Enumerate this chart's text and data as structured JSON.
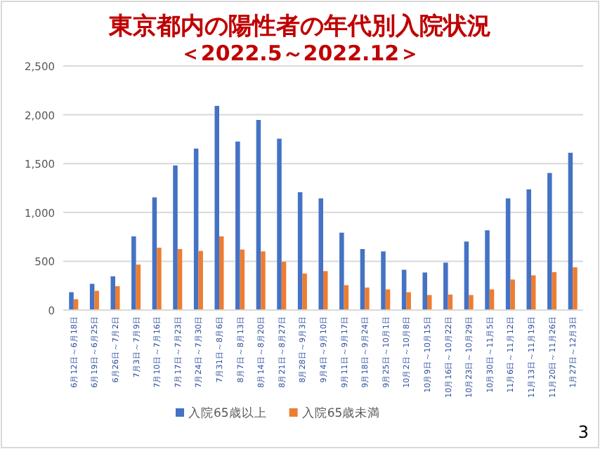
{
  "chart_data": {
    "type": "bar",
    "title": "東京都内の陽性者の年代別入院状況",
    "subtitle": "＜2022.5～2022.12＞",
    "categories": [
      "6月12日～6月18日",
      "6月19日～6月25日",
      "6月26日～7月2日",
      "7月3日～7月9日",
      "7月10日～7月16日",
      "7月17日～7月23日",
      "7月24日～7月30日",
      "7月31日～8月6日",
      "8月7日～8月13日",
      "8月14日～8月20日",
      "8月21日～8月27日",
      "8月28日～9月3日",
      "9月4日～9月10日",
      "9月11日～9月17日",
      "9月18日～9月24日",
      "9月25日～10月1日",
      "10月2日～10月8日",
      "10月9日～10月15日",
      "10月16日～10月22日",
      "10月23日～10月29日",
      "10月30日～11月5日",
      "11月6日～11月12日",
      "11月13日～11月19日",
      "11月20日～11月26日",
      "1月27日～12月3日"
    ],
    "series": [
      {
        "name": "入院65歳以上",
        "color": "#4472c4",
        "values": [
          183,
          269,
          346,
          755,
          1154,
          1481,
          1654,
          2091,
          1726,
          1947,
          1755,
          1207,
          1144,
          793,
          625,
          601,
          413,
          385,
          486,
          702,
          817,
          1144,
          1236,
          1404,
          1611
        ]
      },
      {
        "name": "入院65歳未満",
        "color": "#ed7d31",
        "values": [
          111,
          197,
          245,
          466,
          639,
          625,
          606,
          755,
          620,
          601,
          495,
          375,
          399,
          255,
          231,
          212,
          183,
          154,
          159,
          154,
          212,
          313,
          356,
          389,
          438
        ]
      }
    ],
    "ylim": [
      0,
      2500
    ],
    "yticks": [
      {
        "value": 0,
        "label": "0"
      },
      {
        "value": 500,
        "label": "500"
      },
      {
        "value": 1000,
        "label": "1,000"
      },
      {
        "value": 1500,
        "label": "1,500"
      },
      {
        "value": 2000,
        "label": "2,000"
      },
      {
        "value": 2500,
        "label": "2,500"
      }
    ],
    "grid": "y",
    "legend": "bottom",
    "annotations": [
      "3"
    ]
  }
}
